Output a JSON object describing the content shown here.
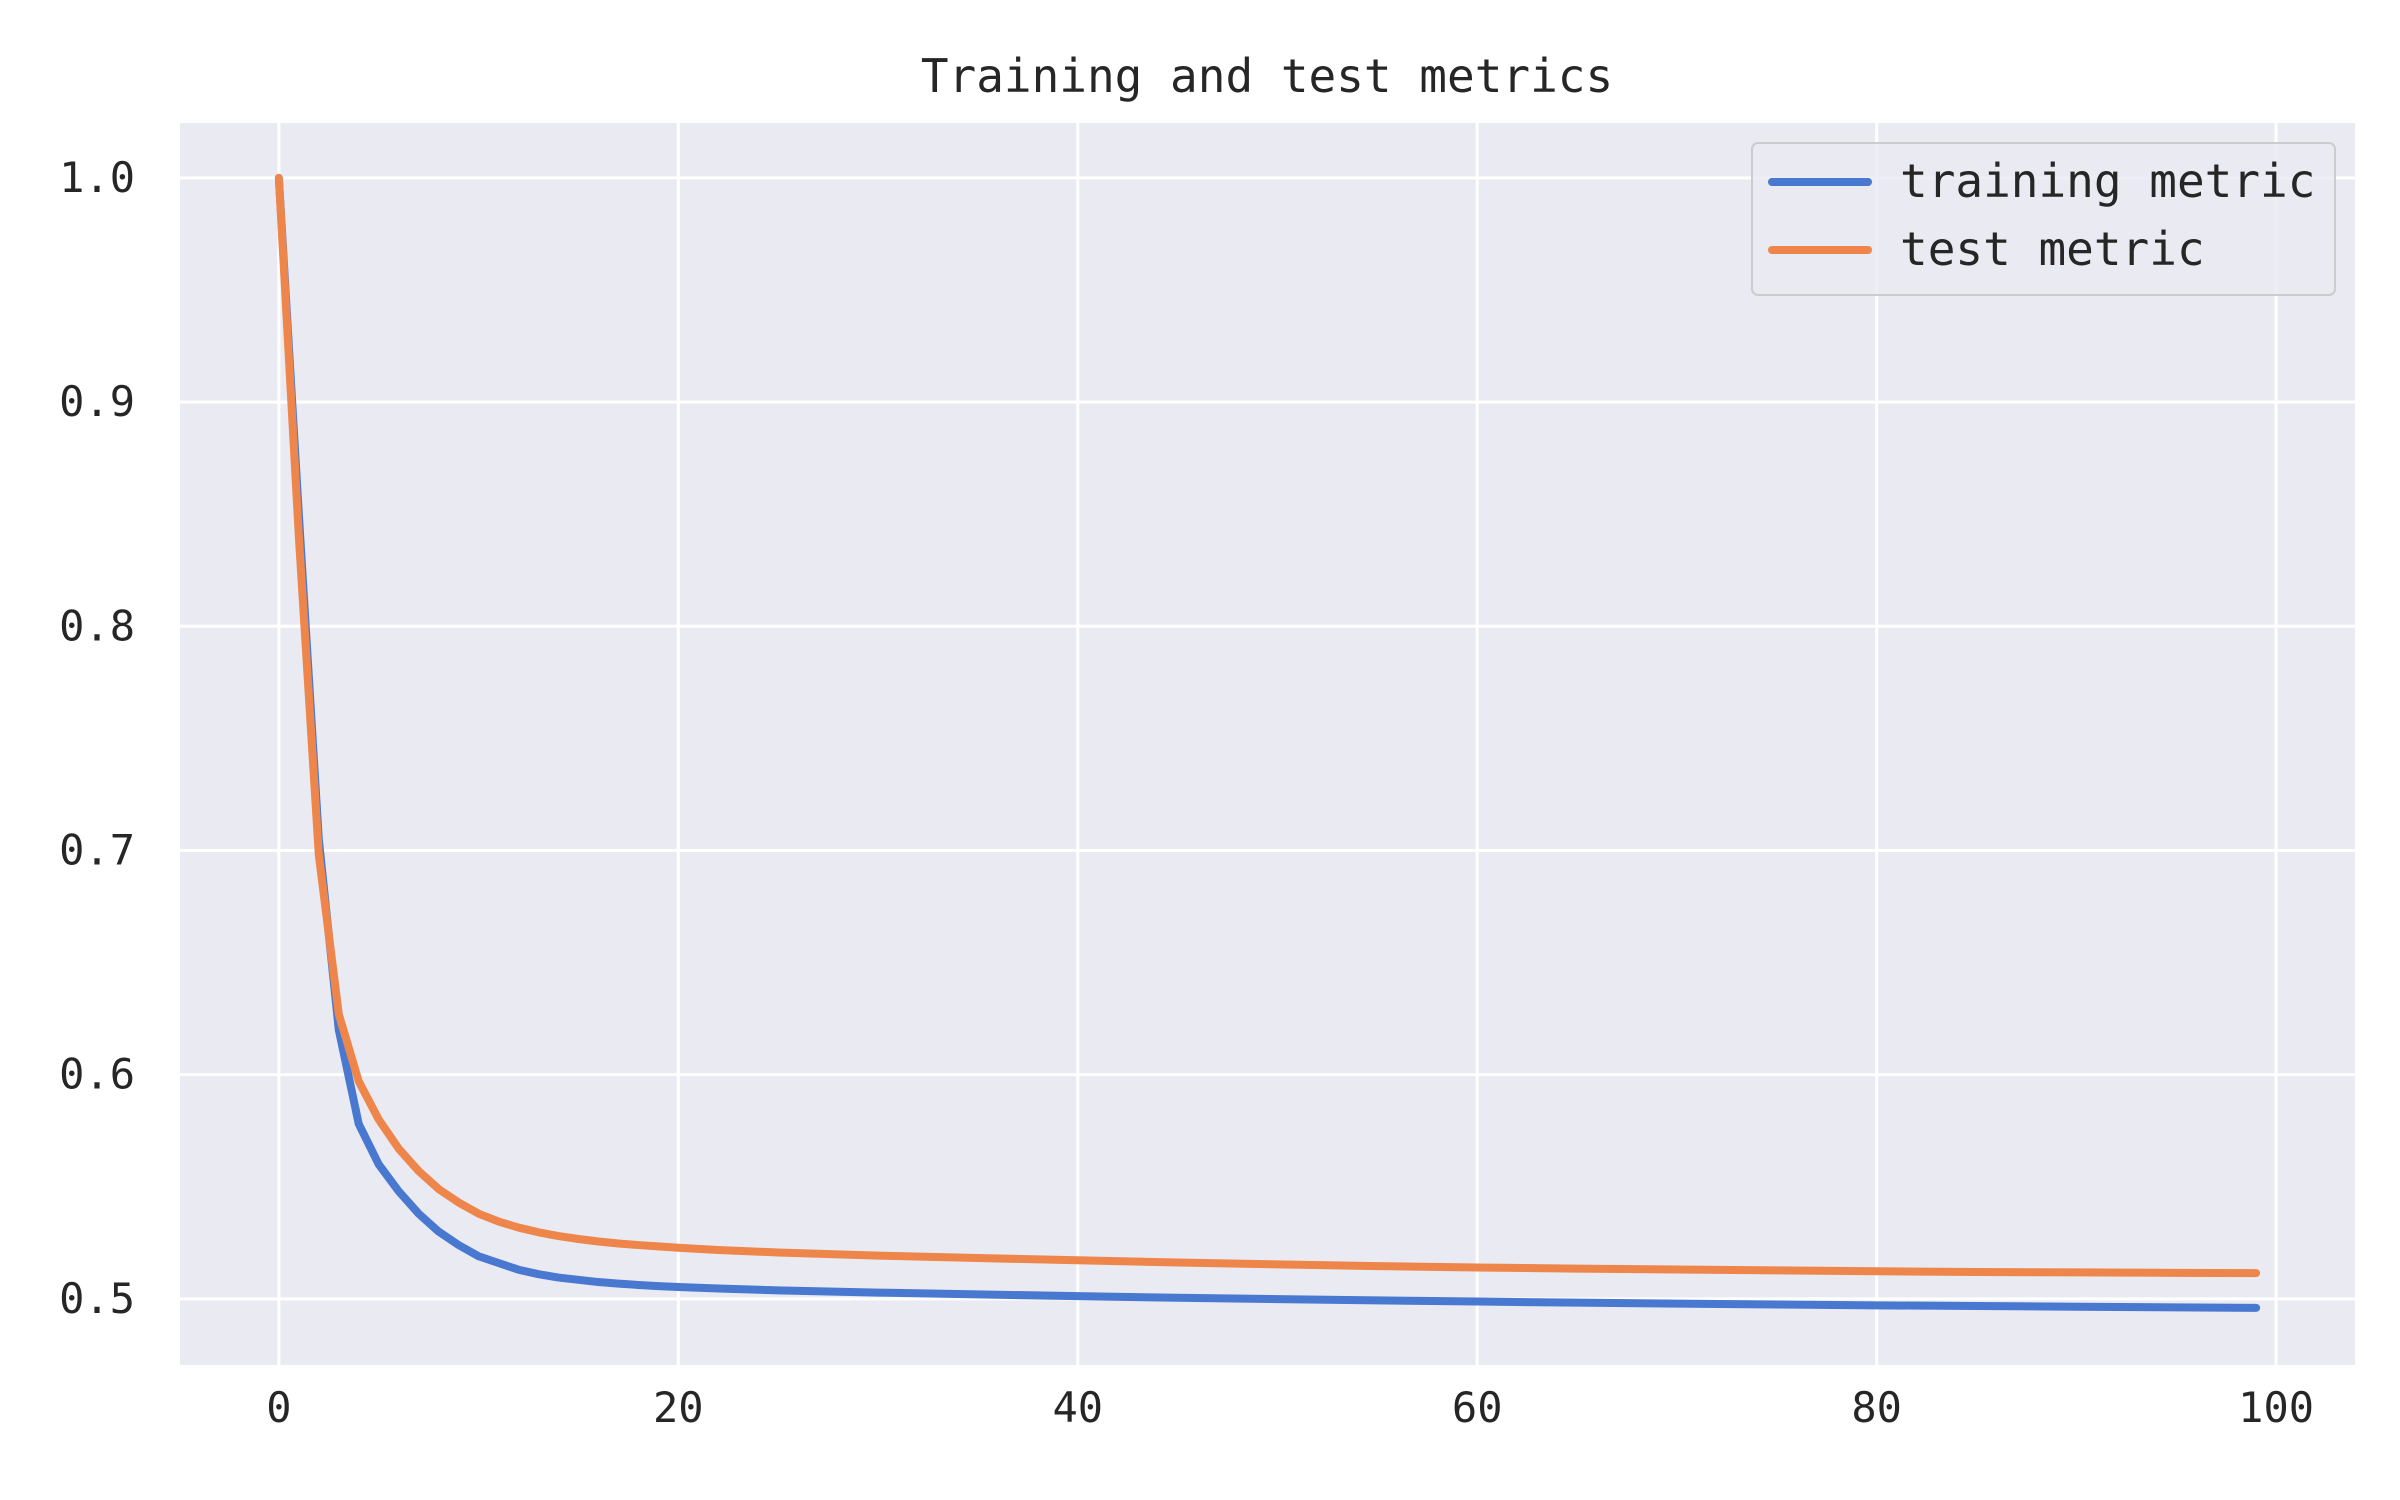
{
  "chart_data": {
    "type": "line",
    "title": "Training and test metrics",
    "xlabel": "",
    "ylabel": "",
    "xlim": [
      -4.95,
      103.95
    ],
    "ylim": [
      0.4705,
      1.0245
    ],
    "x_ticks": [
      0,
      20,
      40,
      60,
      80,
      100
    ],
    "x_tick_labels": [
      "0",
      "20",
      "40",
      "60",
      "80",
      "100"
    ],
    "y_ticks": [
      0.5,
      0.6,
      0.7,
      0.8,
      0.9,
      1.0
    ],
    "y_tick_labels": [
      "0.5",
      "0.6",
      "0.7",
      "0.8",
      "0.9",
      "1.0"
    ],
    "grid": true,
    "legend_position": "top-right",
    "style": {
      "plot_background": "#eaeaf2",
      "grid_color": "#ffffff",
      "text_color": "#262626",
      "legend_border": "#cccccc"
    },
    "x": [
      0,
      1,
      2,
      3,
      4,
      5,
      6,
      7,
      8,
      9,
      10,
      11,
      12,
      13,
      14,
      15,
      16,
      17,
      18,
      19,
      20,
      22,
      25,
      30,
      35,
      40,
      45,
      50,
      55,
      60,
      65,
      70,
      75,
      80,
      85,
      90,
      95,
      99
    ],
    "series": [
      {
        "name": "training metric",
        "color": "#4878d0",
        "values": [
          1.0,
          0.85,
          0.705,
          0.62,
          0.578,
          0.56,
          0.548,
          0.538,
          0.53,
          0.524,
          0.519,
          0.516,
          0.513,
          0.511,
          0.5095,
          0.5085,
          0.5075,
          0.5068,
          0.5062,
          0.5057,
          0.5053,
          0.5046,
          0.5038,
          0.5028,
          0.502,
          0.5012,
          0.5005,
          0.4999,
          0.4993,
          0.4988,
          0.4983,
          0.4979,
          0.4975,
          0.4971,
          0.4968,
          0.4965,
          0.4962,
          0.496
        ]
      },
      {
        "name": "test metric",
        "color": "#ee854a",
        "values": [
          1.0,
          0.84,
          0.698,
          0.627,
          0.597,
          0.58,
          0.567,
          0.557,
          0.549,
          0.543,
          0.538,
          0.5345,
          0.5318,
          0.5297,
          0.528,
          0.5267,
          0.5256,
          0.5247,
          0.524,
          0.5234,
          0.5228,
          0.5218,
          0.5207,
          0.5193,
          0.5182,
          0.5172,
          0.5162,
          0.5154,
          0.5146,
          0.514,
          0.5135,
          0.5131,
          0.5127,
          0.5123,
          0.512,
          0.5118,
          0.5116,
          0.5115
        ]
      }
    ]
  }
}
